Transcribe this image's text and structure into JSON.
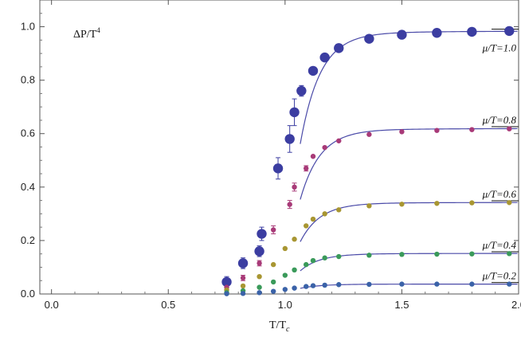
{
  "chart_data": {
    "type": "scatter",
    "title": "",
    "ylabel_text": "ΔP/T",
    "ylabel_sup": "4",
    "xlabel_text": "T/T",
    "xlabel_sub": "c",
    "xlim": [
      -0.05,
      2.0
    ],
    "ylim": [
      0.0,
      1.1
    ],
    "xticks": [
      0.0,
      0.5,
      1.0,
      1.5,
      2.0
    ],
    "xtick_labels": [
      "0.0",
      "0.5",
      "1.0",
      "1.5",
      "2.0"
    ],
    "yticks": [
      0.0,
      0.2,
      0.4,
      0.6,
      0.8,
      1.0
    ],
    "ytick_labels": [
      "0.0",
      "0.2",
      "0.4",
      "0.6",
      "0.8",
      "1.0"
    ],
    "fit_color": "#4a4aa8",
    "series": [
      {
        "label": "μ/T=1.0",
        "color": "#3b3da1",
        "marker_radius": "large",
        "saturation": 0.985,
        "points": [
          {
            "x": 0.75,
            "y": 0.045,
            "err": 0.02
          },
          {
            "x": 0.82,
            "y": 0.115,
            "err": 0.02
          },
          {
            "x": 0.89,
            "y": 0.16,
            "err": 0.02
          },
          {
            "x": 0.9,
            "y": 0.225,
            "err": 0.025
          },
          {
            "x": 0.97,
            "y": 0.47,
            "err": 0.04
          },
          {
            "x": 1.02,
            "y": 0.58,
            "err": 0.05
          },
          {
            "x": 1.04,
            "y": 0.68,
            "err": 0.05
          },
          {
            "x": 1.07,
            "y": 0.76,
            "err": 0.02
          },
          {
            "x": 1.12,
            "y": 0.835,
            "err": 0.01
          },
          {
            "x": 1.17,
            "y": 0.885,
            "err": 0.01
          },
          {
            "x": 1.23,
            "y": 0.92,
            "err": 0.0
          },
          {
            "x": 1.36,
            "y": 0.955,
            "err": 0.0
          },
          {
            "x": 1.5,
            "y": 0.97,
            "err": 0.0
          },
          {
            "x": 1.65,
            "y": 0.977,
            "err": 0.0
          },
          {
            "x": 1.8,
            "y": 0.981,
            "err": 0.0
          },
          {
            "x": 1.96,
            "y": 0.984,
            "err": 0.0
          }
        ]
      },
      {
        "label": "μ/T=0.8",
        "color": "#a83a78",
        "marker_radius": "small",
        "saturation": 0.62,
        "points": [
          {
            "x": 0.75,
            "y": 0.025,
            "err": 0.0
          },
          {
            "x": 0.82,
            "y": 0.06,
            "err": 0.01
          },
          {
            "x": 0.89,
            "y": 0.115,
            "err": 0.01
          },
          {
            "x": 0.95,
            "y": 0.24,
            "err": 0.015
          },
          {
            "x": 1.02,
            "y": 0.335,
            "err": 0.015
          },
          {
            "x": 1.04,
            "y": 0.4,
            "err": 0.015
          },
          {
            "x": 1.09,
            "y": 0.47,
            "err": 0.01
          },
          {
            "x": 1.12,
            "y": 0.515,
            "err": 0.0
          },
          {
            "x": 1.17,
            "y": 0.548,
            "err": 0.0
          },
          {
            "x": 1.23,
            "y": 0.573,
            "err": 0.0
          },
          {
            "x": 1.36,
            "y": 0.597,
            "err": 0.0
          },
          {
            "x": 1.5,
            "y": 0.607,
            "err": 0.0
          },
          {
            "x": 1.65,
            "y": 0.612,
            "err": 0.0
          },
          {
            "x": 1.8,
            "y": 0.615,
            "err": 0.0
          },
          {
            "x": 1.96,
            "y": 0.618,
            "err": 0.0
          }
        ]
      },
      {
        "label": "μ/T=0.6",
        "color": "#a89632",
        "marker_radius": "small",
        "saturation": 0.343,
        "points": [
          {
            "x": 0.75,
            "y": 0.015,
            "err": 0.0
          },
          {
            "x": 0.82,
            "y": 0.03,
            "err": 0.0
          },
          {
            "x": 0.89,
            "y": 0.065,
            "err": 0.0
          },
          {
            "x": 0.95,
            "y": 0.11,
            "err": 0.0
          },
          {
            "x": 1.0,
            "y": 0.17,
            "err": 0.0
          },
          {
            "x": 1.04,
            "y": 0.205,
            "err": 0.0
          },
          {
            "x": 1.09,
            "y": 0.255,
            "err": 0.0
          },
          {
            "x": 1.12,
            "y": 0.28,
            "err": 0.0
          },
          {
            "x": 1.17,
            "y": 0.3,
            "err": 0.0
          },
          {
            "x": 1.23,
            "y": 0.315,
            "err": 0.0
          },
          {
            "x": 1.36,
            "y": 0.33,
            "err": 0.0
          },
          {
            "x": 1.5,
            "y": 0.336,
            "err": 0.0
          },
          {
            "x": 1.65,
            "y": 0.339,
            "err": 0.0
          },
          {
            "x": 1.8,
            "y": 0.341,
            "err": 0.0
          },
          {
            "x": 1.96,
            "y": 0.342,
            "err": 0.0
          }
        ]
      },
      {
        "label": "μ/T=0.4",
        "color": "#3a9a5a",
        "marker_radius": "small",
        "saturation": 0.152,
        "points": [
          {
            "x": 0.75,
            "y": 0.005,
            "err": 0.0
          },
          {
            "x": 0.82,
            "y": 0.012,
            "err": 0.0
          },
          {
            "x": 0.89,
            "y": 0.025,
            "err": 0.0
          },
          {
            "x": 0.95,
            "y": 0.045,
            "err": 0.0
          },
          {
            "x": 1.0,
            "y": 0.07,
            "err": 0.0
          },
          {
            "x": 1.04,
            "y": 0.09,
            "err": 0.0
          },
          {
            "x": 1.09,
            "y": 0.11,
            "err": 0.0
          },
          {
            "x": 1.12,
            "y": 0.125,
            "err": 0.0
          },
          {
            "x": 1.17,
            "y": 0.135,
            "err": 0.0
          },
          {
            "x": 1.23,
            "y": 0.14,
            "err": 0.0
          },
          {
            "x": 1.36,
            "y": 0.145,
            "err": 0.0
          },
          {
            "x": 1.5,
            "y": 0.148,
            "err": 0.0
          },
          {
            "x": 1.65,
            "y": 0.149,
            "err": 0.0
          },
          {
            "x": 1.8,
            "y": 0.15,
            "err": 0.0
          },
          {
            "x": 1.96,
            "y": 0.151,
            "err": 0.0
          }
        ]
      },
      {
        "label": "μ/T=0.2",
        "color": "#3a62a8",
        "marker_radius": "small",
        "saturation": 0.037,
        "points": [
          {
            "x": 0.75,
            "y": 0.001,
            "err": 0.0
          },
          {
            "x": 0.82,
            "y": 0.002,
            "err": 0.0
          },
          {
            "x": 0.89,
            "y": 0.005,
            "err": 0.0
          },
          {
            "x": 0.95,
            "y": 0.01,
            "err": 0.0
          },
          {
            "x": 1.0,
            "y": 0.017,
            "err": 0.0
          },
          {
            "x": 1.04,
            "y": 0.022,
            "err": 0.0
          },
          {
            "x": 1.09,
            "y": 0.028,
            "err": 0.0
          },
          {
            "x": 1.12,
            "y": 0.031,
            "err": 0.0
          },
          {
            "x": 1.17,
            "y": 0.033,
            "err": 0.0
          },
          {
            "x": 1.23,
            "y": 0.035,
            "err": 0.0
          },
          {
            "x": 1.36,
            "y": 0.036,
            "err": 0.0
          },
          {
            "x": 1.5,
            "y": 0.037,
            "err": 0.0
          },
          {
            "x": 1.65,
            "y": 0.037,
            "err": 0.0
          },
          {
            "x": 1.8,
            "y": 0.037,
            "err": 0.0
          },
          {
            "x": 1.96,
            "y": 0.037,
            "err": 0.0
          }
        ]
      }
    ]
  }
}
